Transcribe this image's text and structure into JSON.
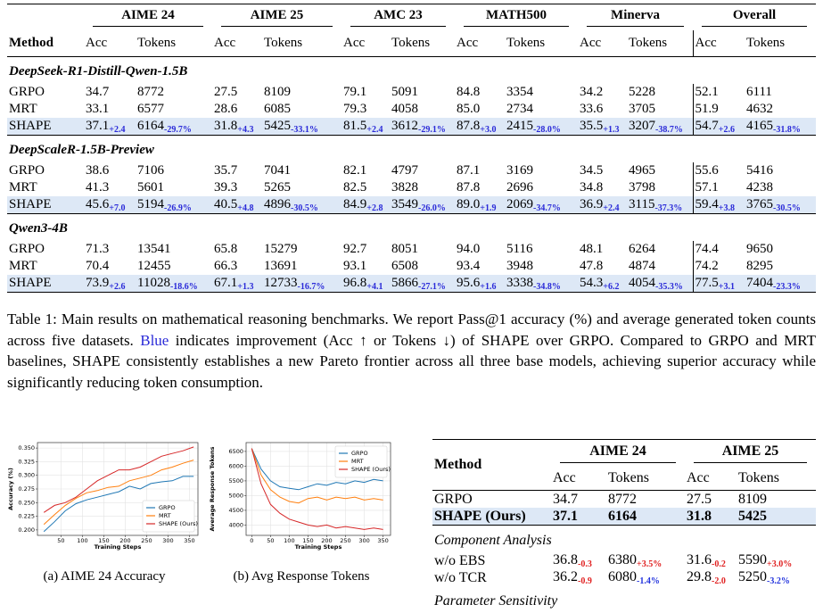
{
  "table1": {
    "method_header": "Method",
    "datasets": [
      "AIME 24",
      "AIME 25",
      "AMC 23",
      "MATH500",
      "Minerva",
      "Overall"
    ],
    "metrics": [
      "Acc",
      "Tokens"
    ],
    "groups": [
      {
        "title": "DeepSeek-R1-Distill-Qwen-1.5B",
        "rows": [
          {
            "method": "GRPO",
            "cells": [
              [
                "34.7"
              ],
              [
                "8772"
              ],
              [
                "27.5"
              ],
              [
                "8109"
              ],
              [
                "79.1"
              ],
              [
                "5091"
              ],
              [
                "84.8"
              ],
              [
                "3354"
              ],
              [
                "34.2"
              ],
              [
                "5228"
              ],
              [
                "52.1"
              ],
              [
                "6111"
              ]
            ]
          },
          {
            "method": "MRT",
            "cells": [
              [
                "33.1"
              ],
              [
                "6577"
              ],
              [
                "28.6"
              ],
              [
                "6085"
              ],
              [
                "79.3"
              ],
              [
                "4058"
              ],
              [
                "85.0"
              ],
              [
                "2734"
              ],
              [
                "33.6"
              ],
              [
                "3705"
              ],
              [
                "51.9"
              ],
              [
                "4632"
              ]
            ]
          },
          {
            "method": "SHAPE",
            "cells": [
              [
                "37.1",
                "+2.4"
              ],
              [
                "6164",
                "-29.7%"
              ],
              [
                "31.8",
                "+4.3"
              ],
              [
                "5425",
                "-33.1%"
              ],
              [
                "81.5",
                "+2.4"
              ],
              [
                "3612",
                "-29.1%"
              ],
              [
                "87.8",
                "+3.0"
              ],
              [
                "2415",
                "-28.0%"
              ],
              [
                "35.5",
                "+1.3"
              ],
              [
                "3207",
                "-38.7%"
              ],
              [
                "54.7",
                "+2.6"
              ],
              [
                "4165",
                "-31.8%"
              ]
            ]
          }
        ]
      },
      {
        "title": "DeepScaleR-1.5B-Preview",
        "rows": [
          {
            "method": "GRPO",
            "cells": [
              [
                "38.6"
              ],
              [
                "7106"
              ],
              [
                "35.7"
              ],
              [
                "7041"
              ],
              [
                "82.1"
              ],
              [
                "4797"
              ],
              [
                "87.1"
              ],
              [
                "3169"
              ],
              [
                "34.5"
              ],
              [
                "4965"
              ],
              [
                "55.6"
              ],
              [
                "5416"
              ]
            ]
          },
          {
            "method": "MRT",
            "cells": [
              [
                "41.3"
              ],
              [
                "5601"
              ],
              [
                "39.3"
              ],
              [
                "5265"
              ],
              [
                "82.5"
              ],
              [
                "3828"
              ],
              [
                "87.8"
              ],
              [
                "2696"
              ],
              [
                "34.8"
              ],
              [
                "3798"
              ],
              [
                "57.1"
              ],
              [
                "4238"
              ]
            ]
          },
          {
            "method": "SHAPE",
            "cells": [
              [
                "45.6",
                "+7.0"
              ],
              [
                "5194",
                "-26.9%"
              ],
              [
                "40.5",
                "+4.8"
              ],
              [
                "4896",
                "-30.5%"
              ],
              [
                "84.9",
                "+2.8"
              ],
              [
                "3549",
                "-26.0%"
              ],
              [
                "89.0",
                "+1.9"
              ],
              [
                "2069",
                "-34.7%"
              ],
              [
                "36.9",
                "+2.4"
              ],
              [
                "3115",
                "-37.3%"
              ],
              [
                "59.4",
                "+3.8"
              ],
              [
                "3765",
                "-30.5%"
              ]
            ]
          }
        ]
      },
      {
        "title": "Qwen3-4B",
        "rows": [
          {
            "method": "GRPO",
            "cells": [
              [
                "71.3"
              ],
              [
                "13541"
              ],
              [
                "65.8"
              ],
              [
                "15279"
              ],
              [
                "92.7"
              ],
              [
                "8051"
              ],
              [
                "94.0"
              ],
              [
                "5116"
              ],
              [
                "48.1"
              ],
              [
                "6264"
              ],
              [
                "74.4"
              ],
              [
                "9650"
              ]
            ]
          },
          {
            "method": "MRT",
            "cells": [
              [
                "70.4"
              ],
              [
                "12455"
              ],
              [
                "66.3"
              ],
              [
                "13691"
              ],
              [
                "93.1"
              ],
              [
                "6508"
              ],
              [
                "93.4"
              ],
              [
                "3948"
              ],
              [
                "47.8"
              ],
              [
                "4874"
              ],
              [
                "74.2"
              ],
              [
                "8295"
              ]
            ]
          },
          {
            "method": "SHAPE",
            "cells": [
              [
                "73.9",
                "+2.6"
              ],
              [
                "11028",
                "-18.6%"
              ],
              [
                "67.1",
                "+1.3"
              ],
              [
                "12733",
                "-16.7%"
              ],
              [
                "96.8",
                "+4.1"
              ],
              [
                "5866",
                "-27.1%"
              ],
              [
                "95.6",
                "+1.6"
              ],
              [
                "3338",
                "-34.8%"
              ],
              [
                "54.3",
                "+6.2"
              ],
              [
                "4054",
                "-35.3%"
              ],
              [
                "77.5",
                "+3.1"
              ],
              [
                "7404",
                "-23.3%"
              ]
            ]
          }
        ]
      }
    ]
  },
  "caption": {
    "label": "Table 1:",
    "before": "Main results on mathematical reasoning benchmarks. We report Pass@1 accuracy (%) and average generated token counts across five datasets.",
    "blue": "Blue",
    "after": "indicates improvement (Acc ↑ or Tokens ↓) of SHAPE over GRPO. Compared to GRPO and MRT baselines, SHAPE consistently establishes a new Pareto frontier across all three base models, achieving superior accuracy while significantly reducing token consumption."
  },
  "figures": [
    {
      "caption": "(a) AIME 24 Accuracy",
      "chart_data": {
        "type": "line",
        "x_label": "Training Steps",
        "y_label": "Accuracy (%)",
        "x": [
          10,
          35,
          60,
          85,
          110,
          135,
          160,
          185,
          210,
          235,
          260,
          285,
          310,
          335,
          360
        ],
        "xlim": [
          -5,
          370
        ],
        "xticks": [
          50,
          100,
          150,
          200,
          250,
          300,
          350
        ],
        "ylim": [
          0.19,
          0.36
        ],
        "yticks": [
          {
            "value": 0.2,
            "label": "0.200"
          },
          {
            "value": 0.225,
            "label": "0.225"
          },
          {
            "value": 0.25,
            "label": "0.250"
          },
          {
            "value": 0.275,
            "label": "0.275"
          },
          {
            "value": 0.3,
            "label": "0.300"
          },
          {
            "value": 0.325,
            "label": "0.325"
          },
          {
            "value": 0.35,
            "label": "0.350"
          }
        ],
        "grid": true,
        "legend": "lower right",
        "series": [
          {
            "name": "GRPO",
            "color": "#1f77b4",
            "values": [
              0.197,
              0.215,
              0.235,
              0.248,
              0.255,
              0.26,
              0.265,
              0.27,
              0.28,
              0.275,
              0.285,
              0.288,
              0.29,
              0.298,
              0.298
            ]
          },
          {
            "name": "MRT",
            "color": "#ff7f0e",
            "values": [
              0.21,
              0.228,
              0.245,
              0.258,
              0.268,
              0.272,
              0.278,
              0.28,
              0.29,
              0.295,
              0.3,
              0.31,
              0.315,
              0.322,
              0.328
            ]
          },
          {
            "name": "SHAPE (Ours)",
            "color": "#d62728",
            "values": [
              0.232,
              0.245,
              0.25,
              0.26,
              0.275,
              0.29,
              0.3,
              0.31,
              0.31,
              0.315,
              0.325,
              0.335,
              0.34,
              0.345,
              0.352
            ]
          }
        ]
      }
    },
    {
      "caption": "(b) Avg Response Tokens",
      "chart_data": {
        "type": "line",
        "x_label": "Training Steps",
        "y_label": "Average Response Tokens",
        "x": [
          0,
          25,
          50,
          75,
          100,
          125,
          150,
          175,
          200,
          225,
          250,
          275,
          300,
          325,
          350
        ],
        "xlim": [
          -15,
          370
        ],
        "xticks": [
          0,
          50,
          100,
          150,
          200,
          250,
          300,
          350
        ],
        "ylim": [
          3650,
          6800
        ],
        "yticks": [
          4000,
          4500,
          5000,
          5500,
          6000,
          6500
        ],
        "grid": true,
        "legend": "upper right",
        "series": [
          {
            "name": "GRPO",
            "color": "#1f77b4",
            "values": [
              6600,
              5900,
              5500,
              5300,
              5250,
              5200,
              5300,
              5400,
              5350,
              5450,
              5400,
              5500,
              5450,
              5550,
              5500
            ]
          },
          {
            "name": "MRT",
            "color": "#ff7f0e",
            "values": [
              6600,
              5700,
              5200,
              4950,
              4800,
              4750,
              4900,
              4950,
              4850,
              4950,
              4900,
              4950,
              4850,
              4900,
              4850
            ]
          },
          {
            "name": "SHAPE (Ours)",
            "color": "#d62728",
            "values": [
              6600,
              5400,
              4700,
              4400,
              4200,
              4100,
              4000,
              3950,
              4000,
              3900,
              3950,
              3900,
              3850,
              3900,
              3850
            ]
          }
        ]
      }
    }
  ],
  "table2": {
    "method_header": "Method",
    "datasets": [
      "AIME 24",
      "AIME 25"
    ],
    "metrics": [
      "Acc",
      "Tokens"
    ],
    "rows": [
      {
        "method": "GRPO",
        "cells": [
          [
            "34.7"
          ],
          [
            "8772"
          ],
          [
            "27.5"
          ],
          [
            "8109"
          ]
        ]
      },
      {
        "method": "SHAPE (Ours)",
        "cells": [
          [
            "37.1"
          ],
          [
            "6164"
          ],
          [
            "31.8"
          ],
          [
            "5425"
          ]
        ]
      }
    ],
    "sections": [
      {
        "title": "Component Analysis",
        "rows": [
          {
            "method": "w/o EBS",
            "cells": [
              [
                "36.8",
                "-0.3",
                "#e02020"
              ],
              [
                "6380",
                "+3.5%",
                "#e02020"
              ],
              [
                "31.6",
                "-0.2",
                "#e02020"
              ],
              [
                "5590",
                "+3.0%",
                "#e02020"
              ]
            ]
          },
          {
            "method": "w/o TCR",
            "cells": [
              [
                "36.2",
                "-0.9",
                "#e02020"
              ],
              [
                "6080",
                "-1.4%",
                "#2233dd"
              ],
              [
                "29.8",
                "-2.0",
                "#e02020"
              ],
              [
                "5250",
                "-3.2%",
                "#2233dd"
              ]
            ]
          }
        ]
      },
      {
        "title": "Parameter Sensitivity",
        "rows": []
      }
    ]
  }
}
